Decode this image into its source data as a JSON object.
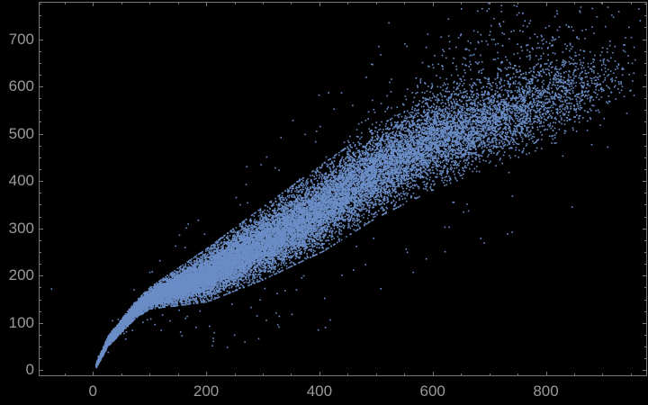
{
  "window": {
    "background": "#000000"
  },
  "chart_data": {
    "type": "scatter",
    "title": "",
    "xlabel": "",
    "ylabel": "",
    "legend": null,
    "grid": false,
    "frame": true,
    "xlim": [
      -95,
      978
    ],
    "ylim": [
      -11.5,
      778
    ],
    "x_ticks": [
      0,
      200,
      400,
      600,
      800
    ],
    "y_ticks": [
      0,
      100,
      200,
      300,
      400,
      500,
      600,
      700
    ],
    "x_tick_labels": [
      "0",
      "200",
      "400",
      "600",
      "800"
    ],
    "y_tick_labels": [
      "0",
      "100",
      "200",
      "300",
      "400",
      "500",
      "600",
      "700"
    ],
    "x_minor_step": 50,
    "y_minor_step": 25,
    "background": "#000000",
    "point_color": "#6b8dc6",
    "frame_color": "#787878",
    "tick_color": "#787878",
    "label_color": "#9a9a9a",
    "n_points": 26000,
    "marker_size_px": 1.6,
    "model": {
      "description": "Comet-shaped dense band y ~ f(x) rising from origin, widening with x, with strong upward-skewed diffuse cloud for x > 400 reaching the top frame; sparse stragglers below the band; x-density tapers toward the right edge.",
      "seed": 1337,
      "x_min": 6,
      "x_max": 975,
      "x_beta_a": 1.15,
      "x_beta_b": 2.2,
      "center_anchors": [
        [
          6,
          10
        ],
        [
          27,
          62
        ],
        [
          75,
          127
        ],
        [
          100,
          152
        ],
        [
          200,
          200
        ],
        [
          300,
          268
        ],
        [
          408,
          345
        ],
        [
          500,
          418
        ],
        [
          600,
          480
        ],
        [
          700,
          520
        ],
        [
          800,
          560
        ],
        [
          900,
          600
        ],
        [
          975,
          625
        ]
      ],
      "halfwidth_anchors": [
        [
          6,
          3
        ],
        [
          27,
          7
        ],
        [
          75,
          11
        ],
        [
          100,
          14
        ],
        [
          200,
          35
        ],
        [
          300,
          48
        ],
        [
          408,
          58
        ],
        [
          500,
          60
        ],
        [
          600,
          62
        ],
        [
          700,
          58
        ],
        [
          800,
          55
        ],
        [
          900,
          50
        ],
        [
          975,
          48
        ]
      ],
      "gauss_clip": 2.4,
      "sigma_factor": 0.667,
      "upskew_anchors": [
        [
          350,
          0
        ],
        [
          500,
          30
        ],
        [
          600,
          45
        ],
        [
          700,
          60
        ],
        [
          800,
          70
        ],
        [
          900,
          78
        ],
        [
          975,
          82
        ]
      ],
      "upskew_x0": 350,
      "upskew_ramp": 1100,
      "upskew_pmax": 0.5,
      "low_straggler_prob": 0.003,
      "high_straggler_prob": 0.0015
    },
    "outliers": [
      [
        -73,
        172
      ],
      [
        492,
        647
      ],
      [
        590,
        590
      ],
      [
        943,
        543
      ],
      [
        881,
        477
      ],
      [
        830,
        453
      ],
      [
        273,
        354
      ],
      [
        38,
        64
      ],
      [
        27,
        38
      ],
      [
        13,
        30
      ]
    ]
  }
}
